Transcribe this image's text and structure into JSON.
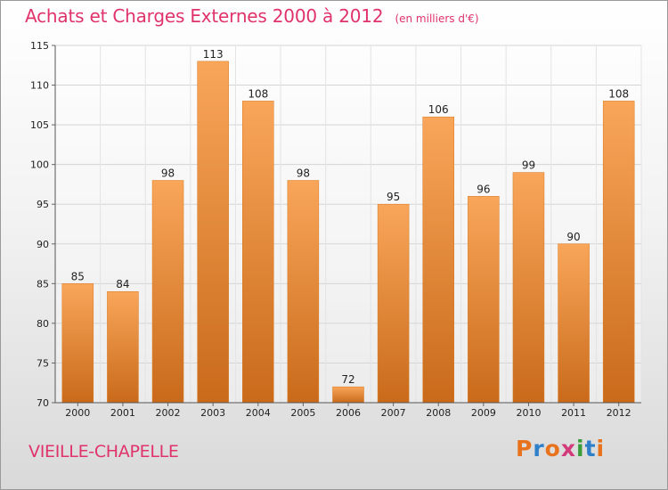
{
  "header": {
    "title": "Achats et Charges Externes 2000 à 2012",
    "subtitle": "(en milliers d'€)"
  },
  "footer": {
    "commune": "VIEILLE-CHAPELLE",
    "logo_text": "Proxiti",
    "logo_colors": [
      "#e8731c",
      "#2e7fc9",
      "#e8731c",
      "#d23a7a",
      "#3a9d3a",
      "#2e7fc9",
      "#e8731c"
    ]
  },
  "chart_data": {
    "type": "bar",
    "title": "Achats et Charges Externes 2000 à 2012",
    "subtitle": "(en milliers d'€)",
    "categories": [
      "2000",
      "2001",
      "2002",
      "2003",
      "2004",
      "2005",
      "2006",
      "2007",
      "2008",
      "2009",
      "2010",
      "2011",
      "2012"
    ],
    "values": [
      85,
      84,
      98,
      113,
      108,
      98,
      72,
      95,
      106,
      96,
      99,
      90,
      108
    ],
    "ylim": [
      70,
      115
    ],
    "yticks": [
      70,
      75,
      80,
      85,
      90,
      95,
      100,
      105,
      110,
      115
    ],
    "grid": true,
    "bar_color": "#e8862f",
    "bar_color_light": "#f9a65a",
    "bar_color_dark": "#c96a1a"
  }
}
